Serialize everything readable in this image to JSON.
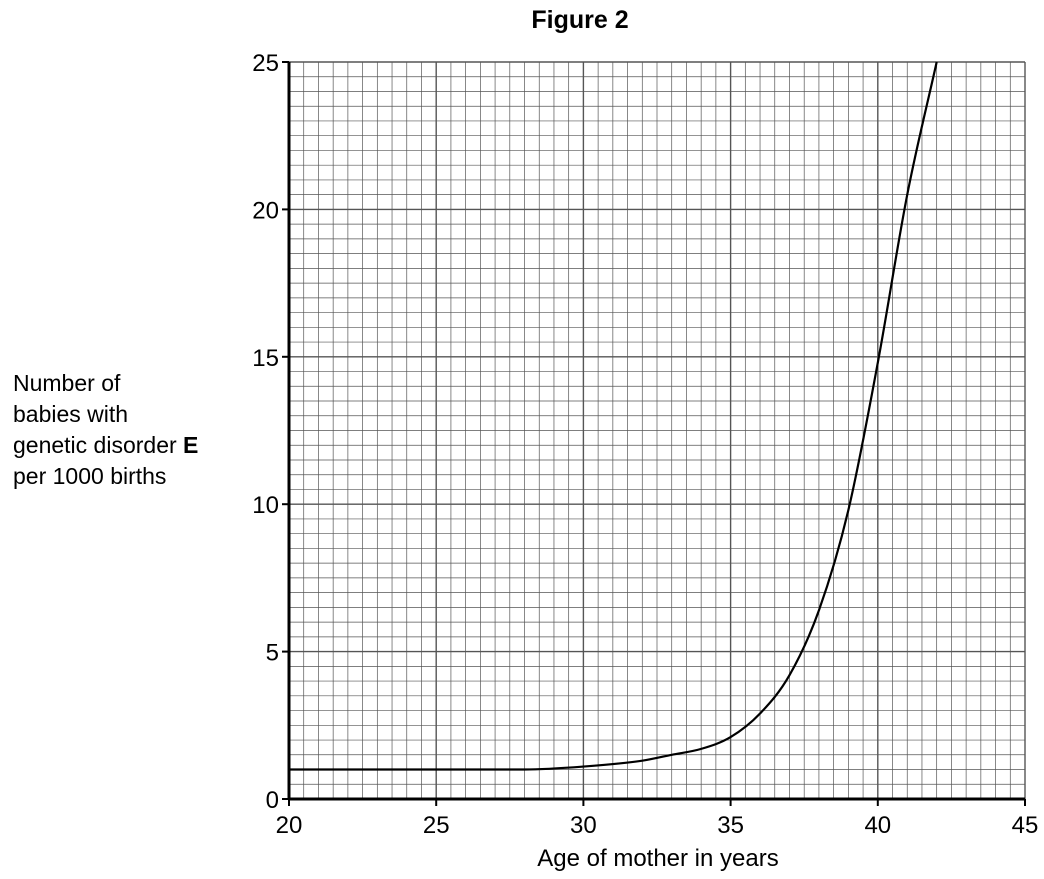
{
  "chart_data": {
    "type": "line",
    "title": "Figure 2",
    "xlabel": "Age of mother in years",
    "ylabel_lines": [
      "Number of",
      "babies with",
      "genetic disorder",
      "per 1000 births"
    ],
    "ylabel_bold": "E",
    "xlim": [
      20,
      45
    ],
    "ylim": [
      0,
      25
    ],
    "x_ticks": [
      20,
      25,
      30,
      35,
      40,
      45
    ],
    "y_ticks": [
      0,
      5,
      10,
      15,
      20,
      25
    ],
    "grid": true,
    "series": [
      {
        "x": [
          20,
          25,
          28,
          30,
          32,
          33,
          34,
          35,
          36,
          37,
          38,
          39,
          40,
          41,
          42
        ],
        "y": [
          1.0,
          1.0,
          1.0,
          1.1,
          1.3,
          1.5,
          1.7,
          2.1,
          2.9,
          4.2,
          6.4,
          9.8,
          14.8,
          20.5,
          25.0
        ]
      }
    ]
  }
}
